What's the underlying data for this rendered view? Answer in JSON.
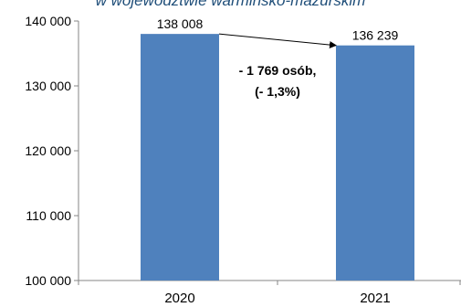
{
  "chart_data": {
    "type": "bar",
    "title": "w województwie warmińsko-mazurskim",
    "categories": [
      "2020",
      "2021"
    ],
    "values": [
      138008,
      136239
    ],
    "data_labels": [
      "138 008",
      "136 239"
    ],
    "ylim": [
      100000,
      140000
    ],
    "yticks": [
      100000,
      110000,
      120000,
      130000,
      140000
    ],
    "ytick_labels": [
      "100 000",
      "110 000",
      "120 000",
      "130 000",
      "140 000"
    ],
    "grid": false,
    "legend": "none",
    "annotation": {
      "lines": [
        "- 1 769 osób,",
        "(- 1,3%)"
      ],
      "from_category": "2020",
      "to_category": "2021"
    },
    "colors": {
      "bar": "#4f81bd",
      "axis": "#868686",
      "title": "#1f4e79"
    }
  }
}
